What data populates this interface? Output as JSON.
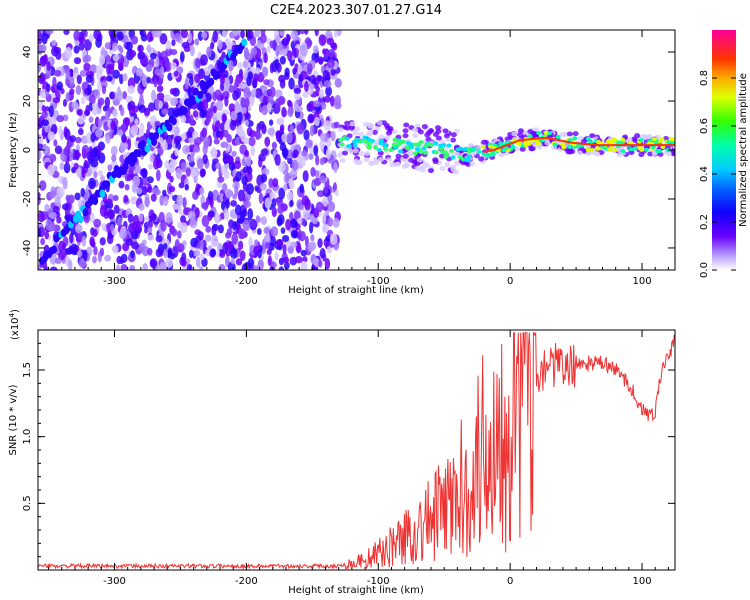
{
  "title": "C2E4.2023.307.01.27.G14",
  "chart_data": [
    {
      "type": "heatmap",
      "xlabel": "Height of straight line (km)",
      "ylabel": "Frequency (Hz)",
      "xlim": [
        -358,
        125
      ],
      "ylim": [
        -49,
        49
      ],
      "x_ticks": [
        -300,
        -200,
        -100,
        0,
        100
      ],
      "x_tick_labels": [
        "-300",
        "-200",
        "-100",
        "0",
        "100"
      ],
      "y_ticks": [
        -40,
        -20,
        0,
        20,
        40
      ],
      "y_tick_labels": [
        "-40",
        "-20",
        "0",
        "20",
        "40"
      ],
      "colorbar": {
        "label": "Normalized spectral amplitude",
        "range": [
          0,
          1
        ],
        "ticks": [
          0.0,
          0.2,
          0.4,
          0.6,
          0.8
        ],
        "tick_labels": [
          "0.0",
          "0.2",
          "0.4",
          "0.6",
          "0.8"
        ],
        "colors": [
          "#ffffff",
          "#7b00ff",
          "#2000ff",
          "#00aaff",
          "#00ffcc",
          "#33ff00",
          "#ffee00",
          "#ff7700",
          "#ff0033",
          "#ff00aa"
        ]
      },
      "regions": [
        {
          "name": "noise",
          "x_range": [
            -358,
            -130
          ],
          "freq_range": [
            -49,
            49
          ],
          "amplitude": [
            0.0,
            0.3
          ]
        },
        {
          "name": "signal",
          "x_range": [
            -130,
            125
          ],
          "freq_center": [
            4,
            3,
            2,
            1,
            0,
            -2,
            0,
            4,
            5,
            3,
            2,
            2,
            2,
            2
          ]
        }
      ],
      "diagonal_trace": {
        "x": [
          -355,
          -300,
          -250,
          -200
        ],
        "freq": [
          -45,
          -10,
          15,
          45
        ]
      },
      "grid": false
    },
    {
      "type": "line",
      "xlabel": "Height of straight line (km)",
      "ylabel": "SNR (10 * v/v)",
      "y_multiplier": "(x10",
      "y_multiplier_exp": "4",
      "y_multiplier_close": ")",
      "xlim": [
        -358,
        125
      ],
      "ylim": [
        0,
        1.8
      ],
      "x_ticks": [
        -300,
        -200,
        -100,
        0,
        100
      ],
      "x_tick_labels": [
        "-300",
        "-200",
        "-100",
        "0",
        "100"
      ],
      "y_ticks": [
        0.5,
        1.0,
        1.5
      ],
      "y_tick_labels": [
        "0.5",
        "1.0",
        "1.5"
      ],
      "color": "#ee3333",
      "x": [
        -358,
        -200,
        -130,
        -120,
        -110,
        -100,
        -90,
        -80,
        -70,
        -60,
        -50,
        -40,
        -30,
        -20,
        -10,
        0,
        10,
        20,
        30,
        40,
        50,
        60,
        70,
        80,
        90,
        100,
        105,
        110,
        115,
        120,
        125
      ],
      "y": [
        0.03,
        0.03,
        0.03,
        0.05,
        0.08,
        0.12,
        0.18,
        0.25,
        0.3,
        0.38,
        0.45,
        0.55,
        0.7,
        0.9,
        1.05,
        1.25,
        1.4,
        1.5,
        1.55,
        1.5,
        1.55,
        1.55,
        1.55,
        1.5,
        1.4,
        1.2,
        1.15,
        1.2,
        1.5,
        1.6,
        1.72
      ],
      "grid": false
    }
  ]
}
